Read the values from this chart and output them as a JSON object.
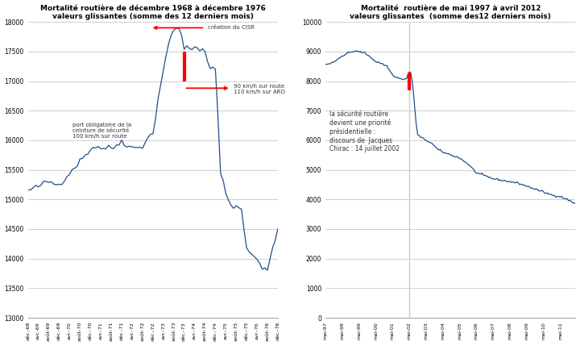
{
  "chart1": {
    "title": "Mortalité routière de décembre 1968 à décembre 1976",
    "subtitle": "valeurs glissantes (somme des 12 derniers mois)",
    "ylim": [
      13000,
      18000
    ],
    "yticks": [
      13000,
      13500,
      14000,
      14500,
      15000,
      15500,
      16000,
      16500,
      17000,
      17500,
      18000
    ],
    "line_color": "#1f4e8c",
    "annotation1_text": "création du CISR",
    "annotation2_text": "90 km/h sur route\n110 km/h sur ARO",
    "annotation3_text": "port obligatoire de la\nceinture de sécurité\n100 km/h sur route",
    "xtick_labels": [
      "déc.-68",
      "avr.-69",
      "août-69",
      "déc.-69",
      "avr.-70",
      "août-70",
      "déc.-70",
      "avr.-71",
      "août-71",
      "déc.-71",
      "avr.-72",
      "août-72",
      "déc.-72",
      "avr.-73",
      "août-73",
      "déc.-73",
      "avr.-74",
      "août-74",
      "déc.-74",
      "avr.-75",
      "août-75",
      "déc.-75",
      "avr.-76",
      "août-76",
      "déc.-76"
    ]
  },
  "chart2": {
    "title": "Mortalité  routière de mai 1997 à avril 2012",
    "subtitle": "valeurs glissantes  (somme des12 derniers mois)",
    "ylim": [
      0,
      10000
    ],
    "yticks": [
      0,
      1000,
      2000,
      3000,
      4000,
      5000,
      6000,
      7000,
      8000,
      9000,
      10000
    ],
    "line_color": "#1f4e8c",
    "annotation_text": "la sécurité routière\ndevient une priorité\nprésidentielle :\ndiscours de  Jacques\nChirac : 14 juillet 2002",
    "xtick_labels": [
      "mai-97",
      "mai-98",
      "mai-99",
      "mai-00",
      "mai-01",
      "mai-02",
      "mai-03",
      "mai-04",
      "mai-05",
      "mai-06",
      "mai-07",
      "mai-08",
      "mai-09",
      "mai-10",
      "mai-11"
    ]
  },
  "background_color": "#ffffff",
  "grid_color": "#bbbbbb",
  "red_color": "#ff0000",
  "blue_line_color": "#add8e6",
  "figsize": [
    7.2,
    4.29
  ],
  "dpi": 100
}
